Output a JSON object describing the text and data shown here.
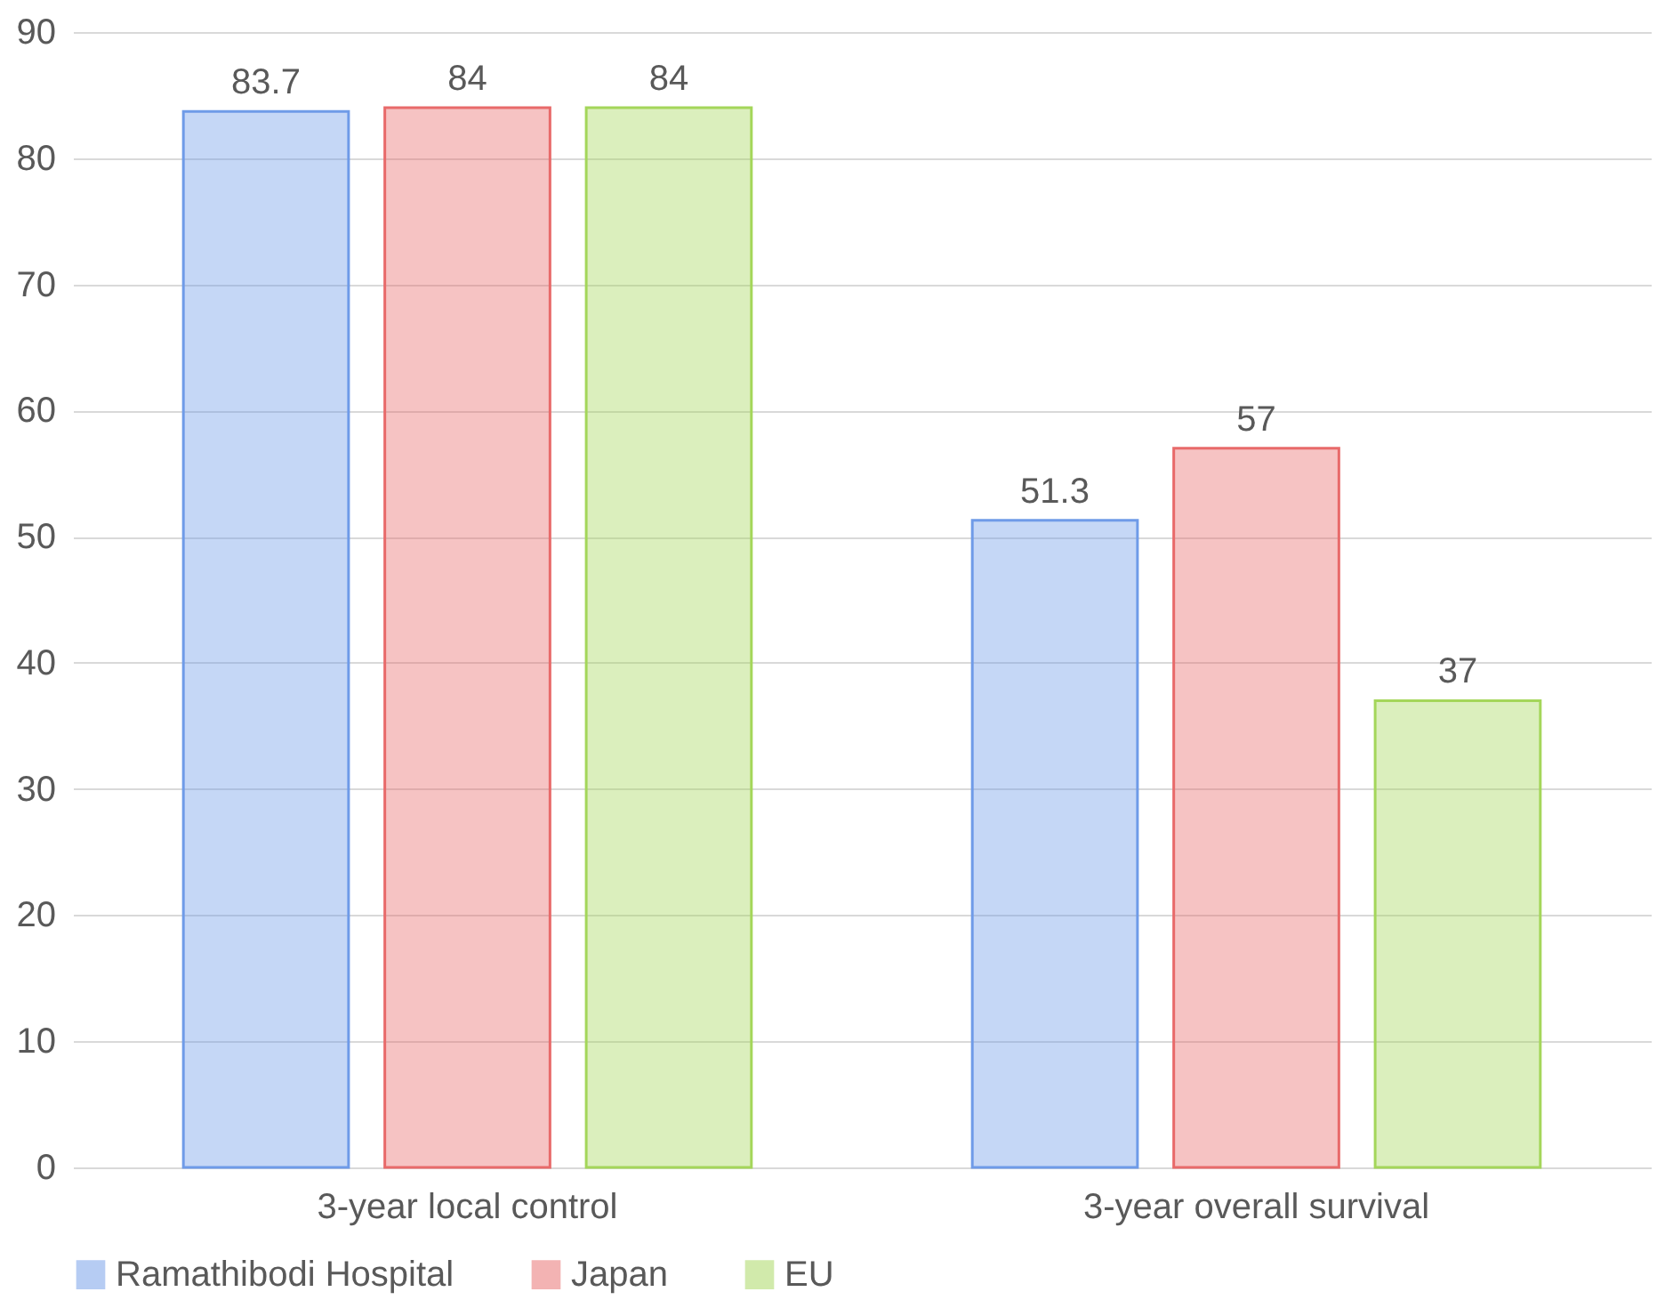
{
  "chart_data": {
    "type": "bar",
    "categories": [
      "3-year local control",
      "3-year overall survival"
    ],
    "series": [
      {
        "name": "Ramathibodi Hospital",
        "color": "#6f9be8",
        "values": [
          83.7,
          51.3
        ]
      },
      {
        "name": "Japan",
        "color": "#e86a6a",
        "values": [
          84,
          57
        ]
      },
      {
        "name": "EU",
        "color": "#a4d65a",
        "values": [
          84,
          37
        ]
      }
    ],
    "ylim": [
      0,
      90
    ],
    "yticks": [
      0,
      10,
      20,
      30,
      40,
      50,
      60,
      70,
      80,
      90
    ],
    "grid": "y",
    "legend": "bottom",
    "data_labels": true
  }
}
